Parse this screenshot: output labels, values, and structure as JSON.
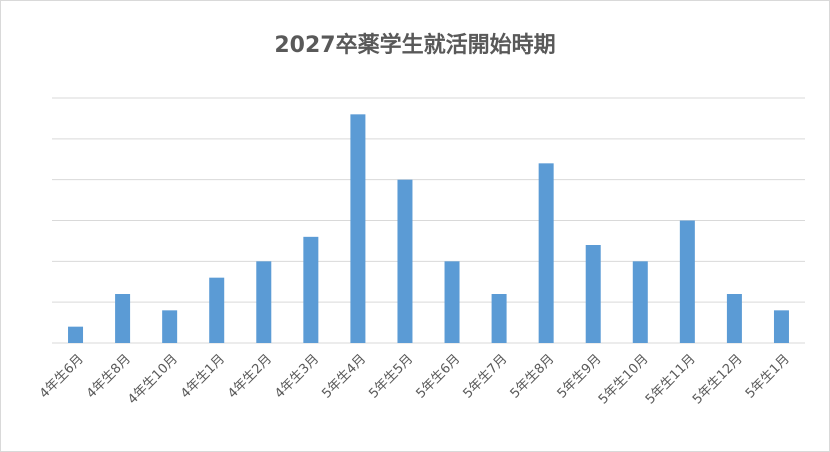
{
  "chart_data": {
    "type": "bar",
    "title": "2027卒薬学生就活開始時期",
    "categories": [
      "4年生6月",
      "4年生8月",
      "4年生10月",
      "4年生1月",
      "4年生2月",
      "4年生3月",
      "5年生4月",
      "5年生5月",
      "5年生6月",
      "5年生7月",
      "5年生8月",
      "5年生9月",
      "5年生10月",
      "5年生11月",
      "5年生12月",
      "5年生1月"
    ],
    "values": [
      0.4,
      1.2,
      0.8,
      1.6,
      2,
      2.6,
      5.6,
      4,
      2,
      1.2,
      4.4,
      2.4,
      2,
      3,
      1.2,
      0.8
    ],
    "color": "#5b9bd5",
    "ylim": [
      0,
      6
    ],
    "yticks": [
      0,
      1,
      2,
      3,
      4,
      5,
      6
    ],
    "grid": true
  }
}
